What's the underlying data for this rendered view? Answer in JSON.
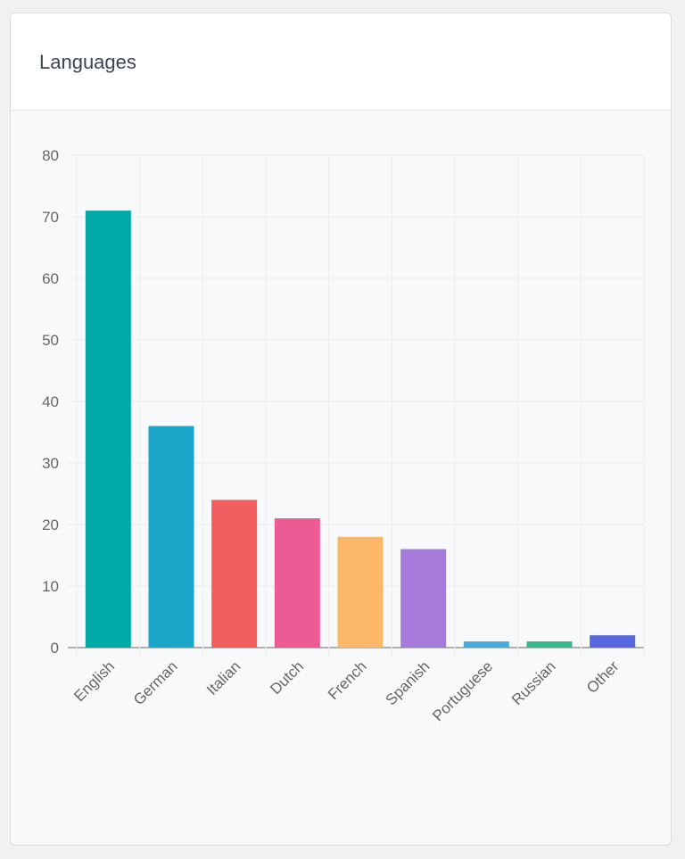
{
  "card": {
    "title": "Languages"
  },
  "chart_data": {
    "type": "bar",
    "title": "",
    "xlabel": "",
    "ylabel": "",
    "categories": [
      "English",
      "German",
      "Italian",
      "Dutch",
      "French",
      "Spanish",
      "Portuguese",
      "Russian",
      "Other"
    ],
    "values": [
      71,
      36,
      24,
      21,
      18,
      16,
      1,
      1,
      2
    ],
    "colors": [
      "#00a9a6",
      "#1aa7ca",
      "#f05e5e",
      "#ec5b93",
      "#fdb768",
      "#a57adb",
      "#45acdf",
      "#38bb8b",
      "#5667e0"
    ],
    "ylim": [
      0,
      80
    ],
    "yticks": [
      0,
      10,
      20,
      30,
      40,
      50,
      60,
      70,
      80
    ],
    "grid": true,
    "legend": "none"
  }
}
